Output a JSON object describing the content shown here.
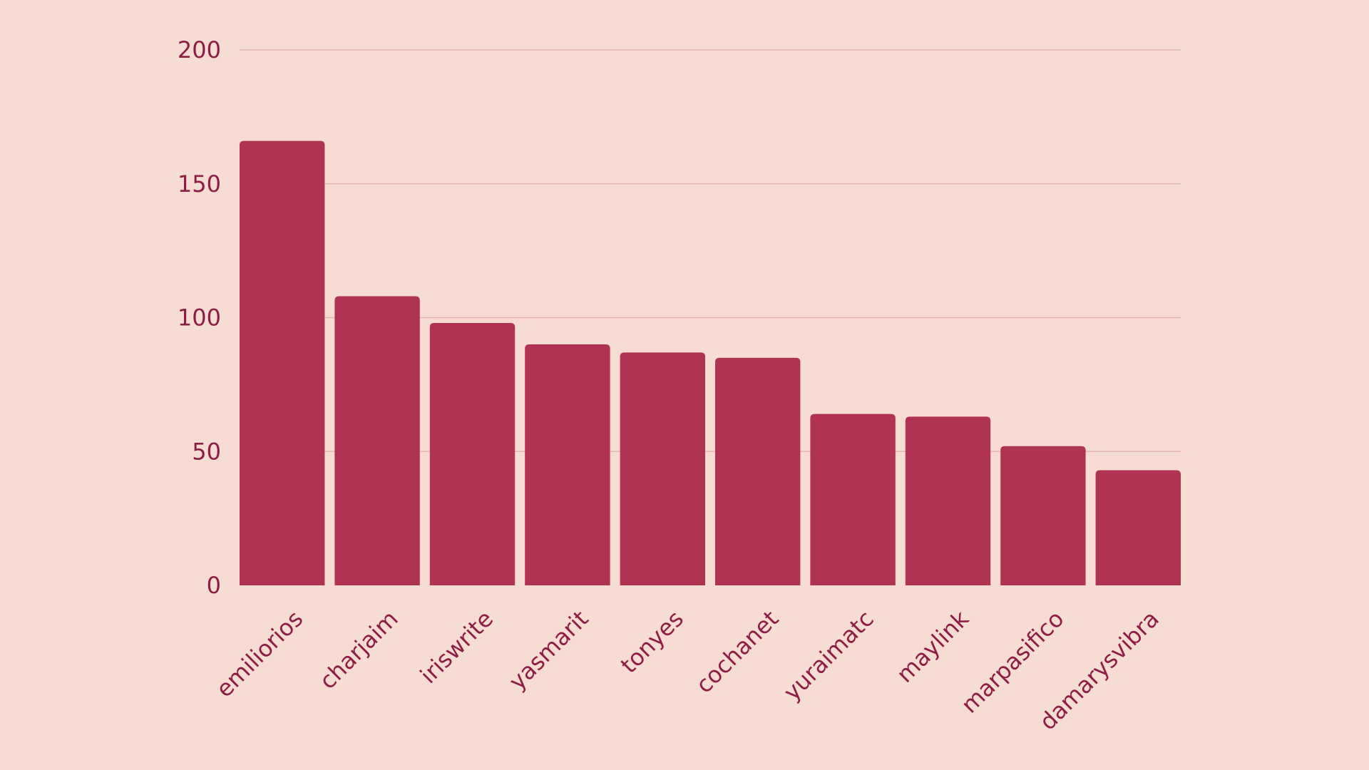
{
  "colors": {
    "background": "#f6dcd3",
    "bar": "#b03452",
    "text": "#8e1d44",
    "grid": "#e4b5b0"
  },
  "chart_data": {
    "type": "bar",
    "title": "",
    "xlabel": "",
    "ylabel": "",
    "categories": [
      "emiliorios",
      "charjaim",
      "iriswrite",
      "yasmarit",
      "tonyes",
      "cochanet",
      "yuraimatc",
      "maylink",
      "marpasifico",
      "damarysvibra"
    ],
    "values": [
      166,
      108,
      98,
      90,
      87,
      85,
      64,
      63,
      52,
      43
    ],
    "ylim": [
      0,
      200
    ],
    "yticks": [
      0,
      50,
      100,
      150,
      200
    ],
    "grid": true,
    "legend": "none"
  }
}
